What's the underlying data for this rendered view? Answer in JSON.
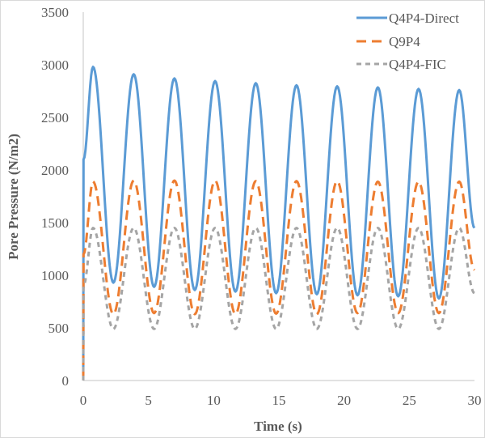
{
  "chart_data": {
    "type": "line",
    "title": "",
    "xlabel": "Time (s)",
    "ylabel": "Pore Pressure (N/m2)",
    "xlim": [
      0,
      30
    ],
    "ylim": [
      0,
      3500
    ],
    "xticks": [
      0,
      5,
      10,
      15,
      20,
      25,
      30
    ],
    "yticks": [
      0,
      500,
      1000,
      1500,
      2000,
      2500,
      3000,
      3500
    ],
    "grid": false,
    "legend": "top-right",
    "series": [
      {
        "name": "Q4P4-Direct",
        "color": "#5b9bd5",
        "style": "solid",
        "x": [
          0,
          0.02,
          0.75,
          2.31,
          3.87,
          5.43,
          6.99,
          8.55,
          10.11,
          11.67,
          13.23,
          14.79,
          16.35,
          17.91,
          19.47,
          21.03,
          22.59,
          24.15,
          25.71,
          27.27,
          28.83,
          30
        ],
        "y": [
          0,
          2100,
          2980,
          930,
          2910,
          890,
          2870,
          860,
          2845,
          845,
          2825,
          830,
          2805,
          820,
          2795,
          810,
          2785,
          800,
          2770,
          780,
          2760,
          1450
        ]
      },
      {
        "name": "Q9P4",
        "color": "#ed7d31",
        "style": "dashed",
        "x": [
          0,
          0.02,
          0.75,
          2.31,
          3.87,
          5.43,
          6.99,
          8.55,
          10.11,
          11.67,
          13.23,
          14.79,
          16.35,
          17.91,
          19.47,
          21.03,
          22.59,
          24.15,
          25.71,
          27.27,
          28.83,
          30
        ],
        "y": [
          0,
          1200,
          1890,
          630,
          1900,
          640,
          1900,
          630,
          1900,
          630,
          1895,
          635,
          1895,
          630,
          1895,
          640,
          1890,
          640,
          1890,
          640,
          1890,
          1050
        ]
      },
      {
        "name": "Q4P4-FIC",
        "color": "#a5a5a5",
        "style": "dashed",
        "x": [
          0,
          0.02,
          0.75,
          2.31,
          3.87,
          5.43,
          6.99,
          8.55,
          10.11,
          11.67,
          13.23,
          14.79,
          16.35,
          17.91,
          19.47,
          21.03,
          22.59,
          24.15,
          25.71,
          27.27,
          28.83,
          30
        ],
        "y": [
          0,
          900,
          1450,
          490,
          1450,
          490,
          1450,
          490,
          1450,
          490,
          1450,
          490,
          1450,
          490,
          1450,
          490,
          1450,
          490,
          1450,
          490,
          1450,
          830
        ]
      }
    ]
  }
}
